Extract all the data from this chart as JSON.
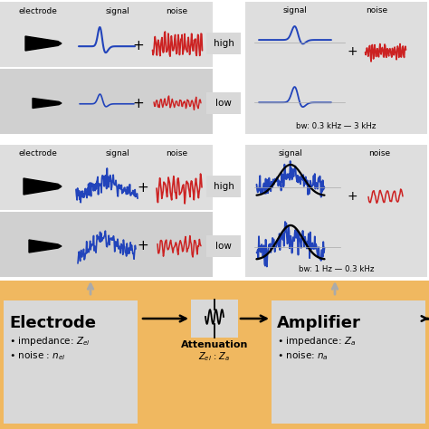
{
  "bg_color": "#FFFFFF",
  "orange_bg": "#F0B860",
  "panel_bg_light": "#DCDCDC",
  "panel_bg_dark": "#C8C8C8",
  "box_bg": "#D8D8D8",
  "electrode_text": "Electrode",
  "amplifier_text": "Amplifier",
  "attenuation_text": "Attenuation",
  "electrode_sub": "Z$_{el}$ : Z$_a$",
  "bw_top": "bw: 0.3 kHz — 3 kHz",
  "bw_bot": "bw: 1 Hz — 0.3 kHz",
  "signal_label": "signal",
  "noise_label": "noise",
  "high_label": "high",
  "low_label": "low",
  "blue_color": "#2244BB",
  "red_color": "#CC2222",
  "black_color": "#000000"
}
